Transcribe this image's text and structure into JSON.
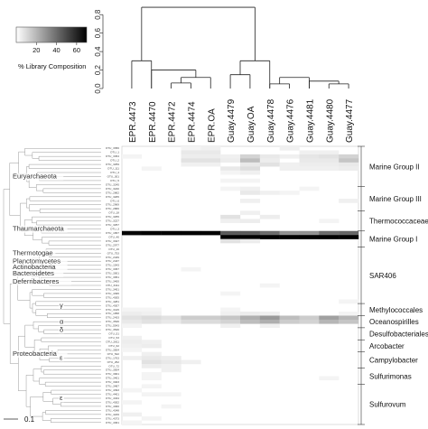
{
  "chart_data": {
    "type": "heatmap",
    "title": "",
    "legend": {
      "title": "% Library Composition",
      "ticks": [
        "20",
        "40",
        "60"
      ],
      "range": [
        0,
        70
      ],
      "color_low": "#ffffff",
      "color_high": "#000000",
      "placement": "top-left"
    },
    "dendrogram_axis": {
      "ticks": [
        "0.0",
        "0.2",
        "0.4",
        "0.6",
        "0.8"
      ],
      "range": [
        0,
        0.9
      ]
    },
    "scale_bar": "0.1",
    "columns": [
      "EPR.4473",
      "EPR.4470",
      "EPR.4472",
      "EPR.4474",
      "EPR.OA",
      "Guay.4479",
      "Guay.OA",
      "Guay.4478",
      "Guay.4476",
      "Guay.4481",
      "Guay.4480",
      "Guay.4477"
    ],
    "column_dendrogram_merges": [
      {
        "a": "EPR.4472",
        "b": "EPR.4474",
        "h": 0.06
      },
      {
        "a": "EPR.4472+EPR.4474",
        "b": "EPR.OA",
        "h": 0.12
      },
      {
        "a": "EPR.4470",
        "b": "EPR.4472+EPR.4474+EPR.OA",
        "h": 0.2
      },
      {
        "a": "EPR.4473",
        "b": "EPR.4470+",
        "h": 0.3
      },
      {
        "a": "Guay.4479",
        "b": "Guay.OA",
        "h": 0.15
      },
      {
        "a": "Guay.4478",
        "b": "Guay.4476",
        "h": 0.05
      },
      {
        "a": "Guay.4480",
        "b": "Guay.4477",
        "h": 0.05
      },
      {
        "a": "Guay.4481",
        "b": "Guay.4480+Guay.4477",
        "h": 0.08
      },
      {
        "a": "Guay.4478+Guay.4476",
        "b": "Guay.4481+",
        "h": 0.12
      },
      {
        "a": "Guay.4479+Guay.OA",
        "b": "Guay.4478+",
        "h": 0.3
      },
      {
        "a": "EPR",
        "b": "Guay",
        "h": 0.88
      }
    ],
    "rows": [
      "OTU_3356",
      "OTU_1",
      "OTU_3454",
      "OTU_2",
      "OTU_3259",
      "OTU_111",
      "OTU_4",
      "OTU_301",
      "OTU_5",
      "OTU_3245",
      "OTU_3240",
      "OTU_2862",
      "OTU_3265",
      "OTU_6",
      "OTU_2969",
      "OTU_2866",
      "OTU_18",
      "OTU_3255",
      "OTU_3227",
      "OTU_3257",
      "OTU_3",
      "OTU_1657",
      "OTU_40",
      "OTU_3327",
      "OTU_2977",
      "OTU_16",
      "OTU_753",
      "OTU_2439",
      "OTU_2437",
      "OTU_1543",
      "OTU_3457",
      "OTU_3001",
      "OTU_3051",
      "OTU_3400",
      "OTU_3411",
      "OTU_3451",
      "OTU_4395",
      "OTU_4305",
      "OTU_4281",
      "OTU_4307",
      "OTU_3415",
      "OTU_1958",
      "OTU_2433",
      "OTU_3546",
      "OTU_5543",
      "OTU_3546",
      "OTU_51",
      "OTU_53",
      "OTU_2811",
      "OTU_62",
      "OTU_3504",
      "OTU_542",
      "OTU_1763",
      "OTU_252",
      "OTU_72",
      "OTU_3504",
      "OTU_3001",
      "OTU_3401",
      "OTU_3403",
      "OTU_3487",
      "OTU_4393",
      "OTU_4401",
      "OTU_4334",
      "OTU_4302",
      "OTU_4360",
      "OTU_4348",
      "OTU_4229",
      "OTU_4373",
      "OTU_4361"
    ],
    "row_groups": [
      {
        "name": "Marine Group II",
        "start": 0,
        "end": 9
      },
      {
        "name": "Marine Group III",
        "start": 10,
        "end": 15
      },
      {
        "name": "Thermococcaceae",
        "start": 16,
        "end": 20
      },
      {
        "name": "Marine Group I",
        "start": 21,
        "end": 24
      },
      {
        "name": "SAR406",
        "start": 25,
        "end": 38
      },
      {
        "name": "Methylococcales",
        "start": 39,
        "end": 41
      },
      {
        "name": "Oceanospirilles",
        "start": 42,
        "end": 44
      },
      {
        "name": "Desulfobacteriales",
        "start": 45,
        "end": 47
      },
      {
        "name": "Arcobacter",
        "start": 48,
        "end": 50
      },
      {
        "name": "Campylobacter",
        "start": 51,
        "end": 54
      },
      {
        "name": "Sulfurimonas",
        "start": 55,
        "end": 58
      },
      {
        "name": "Sulfurovum",
        "start": 59,
        "end": 68
      }
    ],
    "tree_labels": [
      {
        "name": "Euryarchaeota",
        "row": 8
      },
      {
        "name": "Thaumarchaeota",
        "row": 21
      },
      {
        "name": "Thermotogae",
        "row": 27
      },
      {
        "name": "Planctomycetes",
        "row": 29
      },
      {
        "name": "Actinobacteria",
        "row": 30.5
      },
      {
        "name": "Bacteroidetes",
        "row": 32
      },
      {
        "name": "Deferribacteres",
        "row": 34
      },
      {
        "name": "γ",
        "row": 40
      },
      {
        "name": "α",
        "row": 44
      },
      {
        "name": "δ",
        "row": 46
      },
      {
        "name": "Proteobacteria",
        "row": 52
      },
      {
        "name": "ε",
        "row": 53
      },
      {
        "name": "ε",
        "row": 63
      }
    ],
    "cells": [
      [
        0,
        4,
        4
      ],
      [
        0,
        3,
        3
      ],
      [
        0,
        8,
        4
      ],
      [
        1,
        3,
        6
      ],
      [
        1,
        4,
        6
      ],
      [
        1,
        9,
        4
      ],
      [
        1,
        10,
        4
      ],
      [
        2,
        0,
        3
      ],
      [
        2,
        3,
        5
      ],
      [
        2,
        4,
        5
      ],
      [
        2,
        5,
        4
      ],
      [
        2,
        6,
        12
      ],
      [
        2,
        7,
        6
      ],
      [
        2,
        8,
        4
      ],
      [
        2,
        9,
        7
      ],
      [
        2,
        10,
        8
      ],
      [
        2,
        11,
        12
      ],
      [
        3,
        3,
        8
      ],
      [
        3,
        4,
        8
      ],
      [
        3,
        5,
        5
      ],
      [
        3,
        6,
        18
      ],
      [
        3,
        7,
        5
      ],
      [
        3,
        9,
        6
      ],
      [
        3,
        10,
        6
      ],
      [
        3,
        11,
        16
      ],
      [
        4,
        3,
        4
      ],
      [
        4,
        4,
        4
      ],
      [
        4,
        6,
        6
      ],
      [
        4,
        7,
        8
      ],
      [
        4,
        8,
        4
      ],
      [
        4,
        9,
        5
      ],
      [
        4,
        10,
        5
      ],
      [
        4,
        11,
        6
      ],
      [
        5,
        1,
        3
      ],
      [
        5,
        5,
        6
      ],
      [
        5,
        6,
        9
      ],
      [
        5,
        8,
        4
      ],
      [
        5,
        9,
        4
      ],
      [
        5,
        10,
        4
      ],
      [
        5,
        11,
        5
      ],
      [
        6,
        5,
        3
      ],
      [
        6,
        6,
        4
      ],
      [
        8,
        5,
        3
      ],
      [
        8,
        6,
        3
      ],
      [
        10,
        5,
        3
      ],
      [
        10,
        6,
        4
      ],
      [
        10,
        9,
        3
      ],
      [
        11,
        6,
        6
      ],
      [
        11,
        7,
        4
      ],
      [
        11,
        8,
        3
      ],
      [
        13,
        6,
        4
      ],
      [
        13,
        11,
        4
      ],
      [
        16,
        6,
        4
      ],
      [
        17,
        5,
        8
      ],
      [
        17,
        7,
        5
      ],
      [
        18,
        5,
        4
      ],
      [
        18,
        6,
        5
      ],
      [
        18,
        10,
        3
      ],
      [
        21,
        0,
        68
      ],
      [
        21,
        1,
        70
      ],
      [
        21,
        2,
        70
      ],
      [
        21,
        3,
        70
      ],
      [
        21,
        4,
        70
      ],
      [
        21,
        5,
        45
      ],
      [
        21,
        6,
        45
      ],
      [
        21,
        7,
        40
      ],
      [
        21,
        8,
        30
      ],
      [
        21,
        9,
        30
      ],
      [
        21,
        10,
        40
      ],
      [
        21,
        11,
        42
      ],
      [
        22,
        5,
        70
      ],
      [
        22,
        6,
        70
      ],
      [
        22,
        7,
        70
      ],
      [
        22,
        8,
        70
      ],
      [
        22,
        9,
        70
      ],
      [
        22,
        10,
        70
      ],
      [
        22,
        11,
        70
      ],
      [
        23,
        5,
        8
      ],
      [
        23,
        6,
        5
      ],
      [
        30,
        3,
        3
      ],
      [
        34,
        7,
        3
      ],
      [
        36,
        5,
        3
      ],
      [
        38,
        11,
        3
      ],
      [
        40,
        0,
        3
      ],
      [
        40,
        1,
        3
      ],
      [
        40,
        5,
        3
      ],
      [
        41,
        0,
        5
      ],
      [
        41,
        1,
        4
      ],
      [
        41,
        5,
        4
      ],
      [
        41,
        6,
        5
      ],
      [
        41,
        7,
        4
      ],
      [
        41,
        11,
        3
      ],
      [
        42,
        0,
        8
      ],
      [
        42,
        1,
        10
      ],
      [
        42,
        2,
        8
      ],
      [
        42,
        3,
        14
      ],
      [
        42,
        4,
        14
      ],
      [
        42,
        5,
        16
      ],
      [
        42,
        6,
        22
      ],
      [
        42,
        7,
        28
      ],
      [
        42,
        8,
        18
      ],
      [
        42,
        9,
        14
      ],
      [
        42,
        10,
        26
      ],
      [
        42,
        11,
        20
      ],
      [
        43,
        0,
        6
      ],
      [
        43,
        1,
        8
      ],
      [
        43,
        2,
        6
      ],
      [
        43,
        3,
        10
      ],
      [
        43,
        4,
        10
      ],
      [
        43,
        5,
        12
      ],
      [
        43,
        6,
        18
      ],
      [
        43,
        7,
        22
      ],
      [
        43,
        8,
        14
      ],
      [
        43,
        9,
        12
      ],
      [
        43,
        10,
        20
      ],
      [
        43,
        11,
        16
      ],
      [
        44,
        0,
        3
      ],
      [
        44,
        5,
        4
      ],
      [
        44,
        7,
        4
      ],
      [
        47,
        0,
        4
      ],
      [
        48,
        0,
        5
      ],
      [
        48,
        1,
        4
      ],
      [
        49,
        0,
        4
      ],
      [
        49,
        1,
        5
      ],
      [
        50,
        0,
        3
      ],
      [
        51,
        1,
        4
      ],
      [
        52,
        0,
        4
      ],
      [
        52,
        1,
        6
      ],
      [
        52,
        2,
        5
      ],
      [
        53,
        1,
        8
      ],
      [
        53,
        2,
        6
      ],
      [
        53,
        3,
        4
      ],
      [
        54,
        1,
        5
      ],
      [
        54,
        2,
        4
      ],
      [
        55,
        2,
        4
      ],
      [
        56,
        1,
        3
      ],
      [
        57,
        1,
        3
      ],
      [
        57,
        10,
        3
      ],
      [
        59,
        1,
        3
      ],
      [
        60,
        0,
        3
      ],
      [
        61,
        1,
        3
      ],
      [
        61,
        2,
        3
      ],
      [
        63,
        0,
        3
      ],
      [
        64,
        2,
        3
      ],
      [
        66,
        0,
        4
      ],
      [
        67,
        1,
        3
      ],
      [
        68,
        0,
        3
      ]
    ]
  }
}
